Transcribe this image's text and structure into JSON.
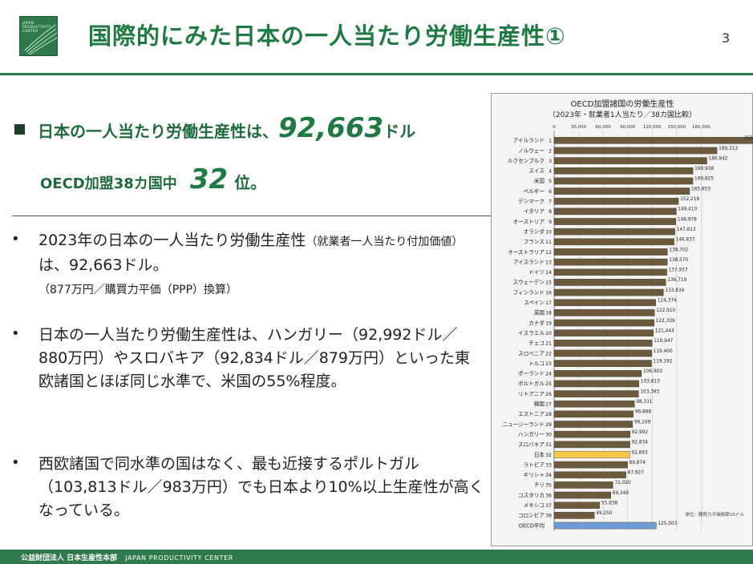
{
  "header": {
    "title": "国際的にみた日本の一人当たり労働生産性①",
    "page_number": "3",
    "logo_lines": [
      "JAPAN",
      "PRODUCTIVITY",
      "CENTER"
    ]
  },
  "highlight": {
    "line1_prefix": "日本の一人当たり労働生産性は、",
    "line1_value": "92,663",
    "line1_unit": "ドル",
    "line2_prefix": "OECD加盟38カ国中",
    "line2_rank": "32",
    "line2_unit": "位。"
  },
  "bullets": [
    {
      "dot": "•",
      "text_a": "2023年の日本の一人当たり労働生産性",
      "text_b": "（就業者一人当たり付加価値）",
      "text_c": "は、92,663ドル。",
      "text_d": "（877万円／購買力平価（PPP）換算）"
    },
    {
      "dot": "•",
      "text": "日本の一人当たり労働生産性は、ハンガリー（92,992ドル／880万円）やスロバキア（92,834ドル／879万円）といった東欧諸国とほぼ同じ水準で、米国の55%程度。"
    },
    {
      "dot": "•",
      "text": "西欧諸国で同水準の国はなく、最も近接するポルトガル（103,813ドル／983万円）でも日本より10%以上生産性が高くなっている。"
    }
  ],
  "footer": {
    "org": "公益財団法人 日本生産性本部",
    "org_en": "JAPAN PRODUCTIVITY CENTER"
  },
  "colors": {
    "brand_green": "#2e7a4c",
    "title_green": "#1f7a44",
    "bar_brown": "#6b5a3e",
    "japan_highlight": "#f5c84a",
    "oecd_avg": "#6f9ad3"
  },
  "chart_data": {
    "type": "bar",
    "orientation": "horizontal",
    "title": "OECD加盟諸国の労働生産性",
    "subtitle": "（2023年・就業者1人当たり／38カ国比較）",
    "note": "単位：購買力平価換算USドル",
    "xlim": [
      0,
      210000
    ],
    "xticks": [
      "0",
      "30,000",
      "60,000",
      "90,000",
      "120,000",
      "150,000",
      "180,000"
    ],
    "xtick_values": [
      0,
      30000,
      60000,
      90000,
      120000,
      150000,
      180000
    ],
    "categories": [
      "アイルランド",
      "ノルウェー",
      "ルクセンブルク",
      "スイス",
      "米国",
      "ベルギー",
      "デンマーク",
      "イタリア",
      "オーストリア",
      "オランダ",
      "フランス",
      "オーストラリア",
      "アイスランド",
      "ドイツ",
      "スウェーデン",
      "フィンランド",
      "スペイン",
      "英国",
      "カナダ",
      "イスラエル",
      "チェコ",
      "スロベニア",
      "トルコ",
      "ポーランド",
      "ポルトガル",
      "リトアニア",
      "韓国",
      "エストニア",
      "ニュージーランド",
      "ハンガリー",
      "スロバキア",
      "日本",
      "ラトビア",
      "ギリシャ",
      "チリ",
      "コスタリカ",
      "メキシコ",
      "コロンビア",
      "OECD平均"
    ],
    "ranks": [
      "1",
      "2",
      "3",
      "4",
      "5",
      "6",
      "7",
      "8",
      "9",
      "10",
      "11",
      "12",
      "13",
      "14",
      "15",
      "16",
      "17",
      "18",
      "19",
      "20",
      "21",
      "22",
      "23",
      "24",
      "25",
      "26",
      "27",
      "28",
      "29",
      "30",
      "31",
      "32",
      "33",
      "34",
      "35",
      "36",
      "37",
      "38",
      ""
    ],
    "values": [
      255780,
      199313,
      186942,
      169938,
      169825,
      165853,
      152219,
      149410,
      148978,
      147813,
      146837,
      138702,
      138570,
      137937,
      136719,
      133834,
      124374,
      122910,
      122339,
      121444,
      119947,
      119400,
      119192,
      106903,
      103813,
      103383,
      98331,
      96888,
      96109,
      92992,
      92834,
      92663,
      89874,
      87927,
      72020,
      69349,
      55838,
      49250,
      125003
    ],
    "value_labels": [
      "255,780",
      "199,313",
      "186,942",
      "169,938",
      "169,825",
      "165,853",
      "152,219",
      "149,410",
      "148,978",
      "147,813",
      "146,837",
      "138,702",
      "138,570",
      "137,937",
      "136,719",
      "133,834",
      "124,374",
      "122,910",
      "122,339",
      "121,444",
      "119,947",
      "119,400",
      "119,192",
      "106,903",
      "103,813",
      "103,383",
      "98,331",
      "96,888",
      "96,109",
      "92,992",
      "92,834",
      "92,663",
      "89,874",
      "87,927",
      "72,020",
      "69,349",
      "55,838",
      "49,250",
      "125,003"
    ],
    "highlight": {
      "日本": "#f5c84a",
      "OECD平均": "#6f9ad3"
    },
    "grid": true,
    "legend": "none"
  }
}
